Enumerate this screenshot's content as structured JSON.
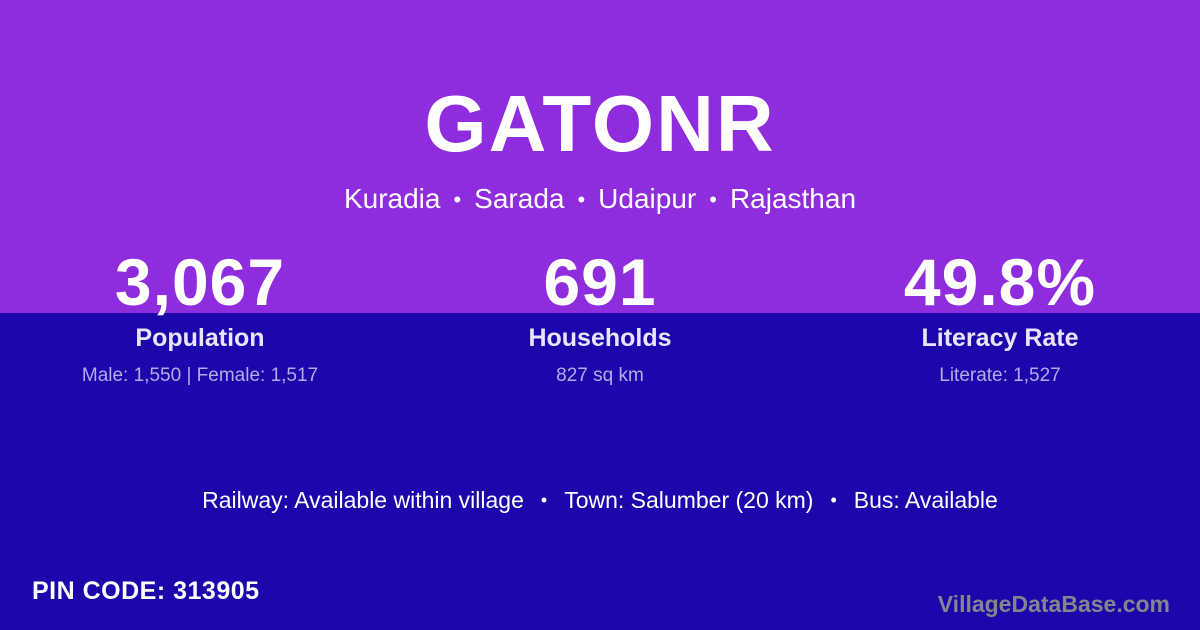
{
  "header": {
    "title": "GATONR",
    "location": [
      "Kuradia",
      "Sarada",
      "Udaipur",
      "Rajasthan"
    ],
    "separator": "•"
  },
  "stats": [
    {
      "value": "3,067",
      "label": "Population",
      "detail": "Male: 1,550 | Female: 1,517"
    },
    {
      "value": "691",
      "label": "Households",
      "detail": "827 sq km"
    },
    {
      "value": "49.8%",
      "label": "Literacy Rate",
      "detail": "Literate: 1,527"
    }
  ],
  "transport": {
    "items": [
      "Railway: Available within village",
      "Town: Salumber (20 km)",
      "Bus: Available"
    ],
    "separator": "•"
  },
  "footer": {
    "pin": "PIN CODE: 313905",
    "watermark": "VillageDataBase.com"
  },
  "colors": {
    "bg-purple": "#8E2CDE",
    "bg-blue": "#1B07AC",
    "text-white": "#FFFFFF",
    "label-lavender": "#E9E4F8",
    "detail-lavender": "#B6ABE5",
    "watermark-grey": "#85858D"
  }
}
